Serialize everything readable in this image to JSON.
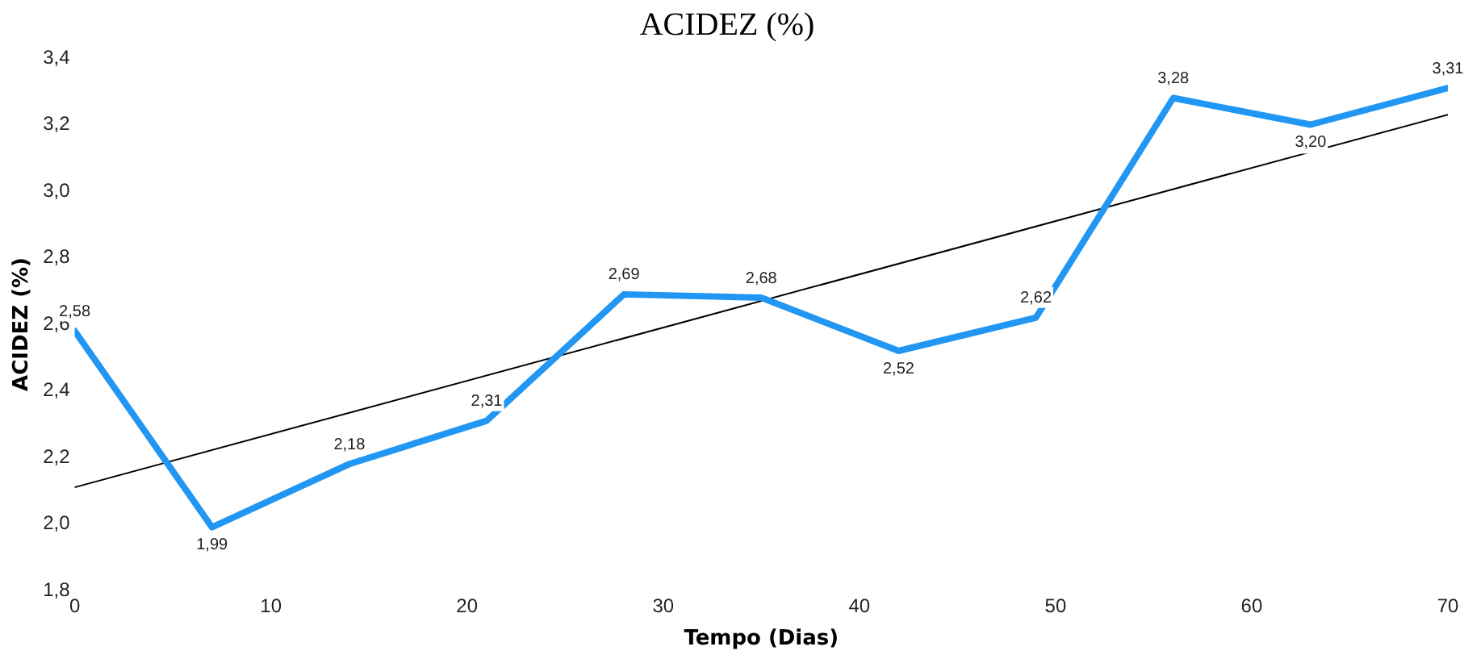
{
  "chart_data": {
    "type": "line",
    "title": "ACIDEZ (%)",
    "xlabel": "Tempo (Dias)",
    "ylabel": "ACIDEZ (%)",
    "x": [
      0,
      7,
      14,
      21,
      28,
      35,
      42,
      49,
      56,
      63,
      70
    ],
    "series": [
      {
        "color": "#2196f3",
        "values": [
          2.58,
          1.99,
          2.18,
          2.31,
          2.69,
          2.68,
          2.52,
          2.62,
          3.28,
          3.2,
          3.31
        ],
        "value_labels": [
          "2,58",
          "1,99",
          "2,18",
          "2,31",
          "2,69",
          "2,68",
          "2,52",
          "2,62",
          "3,28",
          "3,20",
          "3,31"
        ]
      },
      {
        "type": "line",
        "color": "#000000",
        "x": [
          0,
          70
        ],
        "values": [
          2.11,
          3.23
        ]
      }
    ],
    "xlim": [
      0,
      70
    ],
    "xticks": [
      0,
      10,
      20,
      30,
      40,
      50,
      60,
      70
    ],
    "ylim": [
      1.8,
      3.4
    ],
    "yticks": [
      {
        "value": 1.8,
        "label": "1,8"
      },
      {
        "value": 2.0,
        "label": "2,0"
      },
      {
        "value": 2.2,
        "label": "2,2"
      },
      {
        "value": 2.4,
        "label": "2,4"
      },
      {
        "value": 2.6,
        "label": "2,6"
      },
      {
        "value": 2.8,
        "label": "2,8"
      },
      {
        "value": 3.0,
        "label": "3,0"
      },
      {
        "value": 3.2,
        "label": "3,2"
      },
      {
        "value": 3.4,
        "label": "3,4"
      }
    ],
    "grid": false,
    "legend": false,
    "marker": "none",
    "line_style": "solid"
  }
}
